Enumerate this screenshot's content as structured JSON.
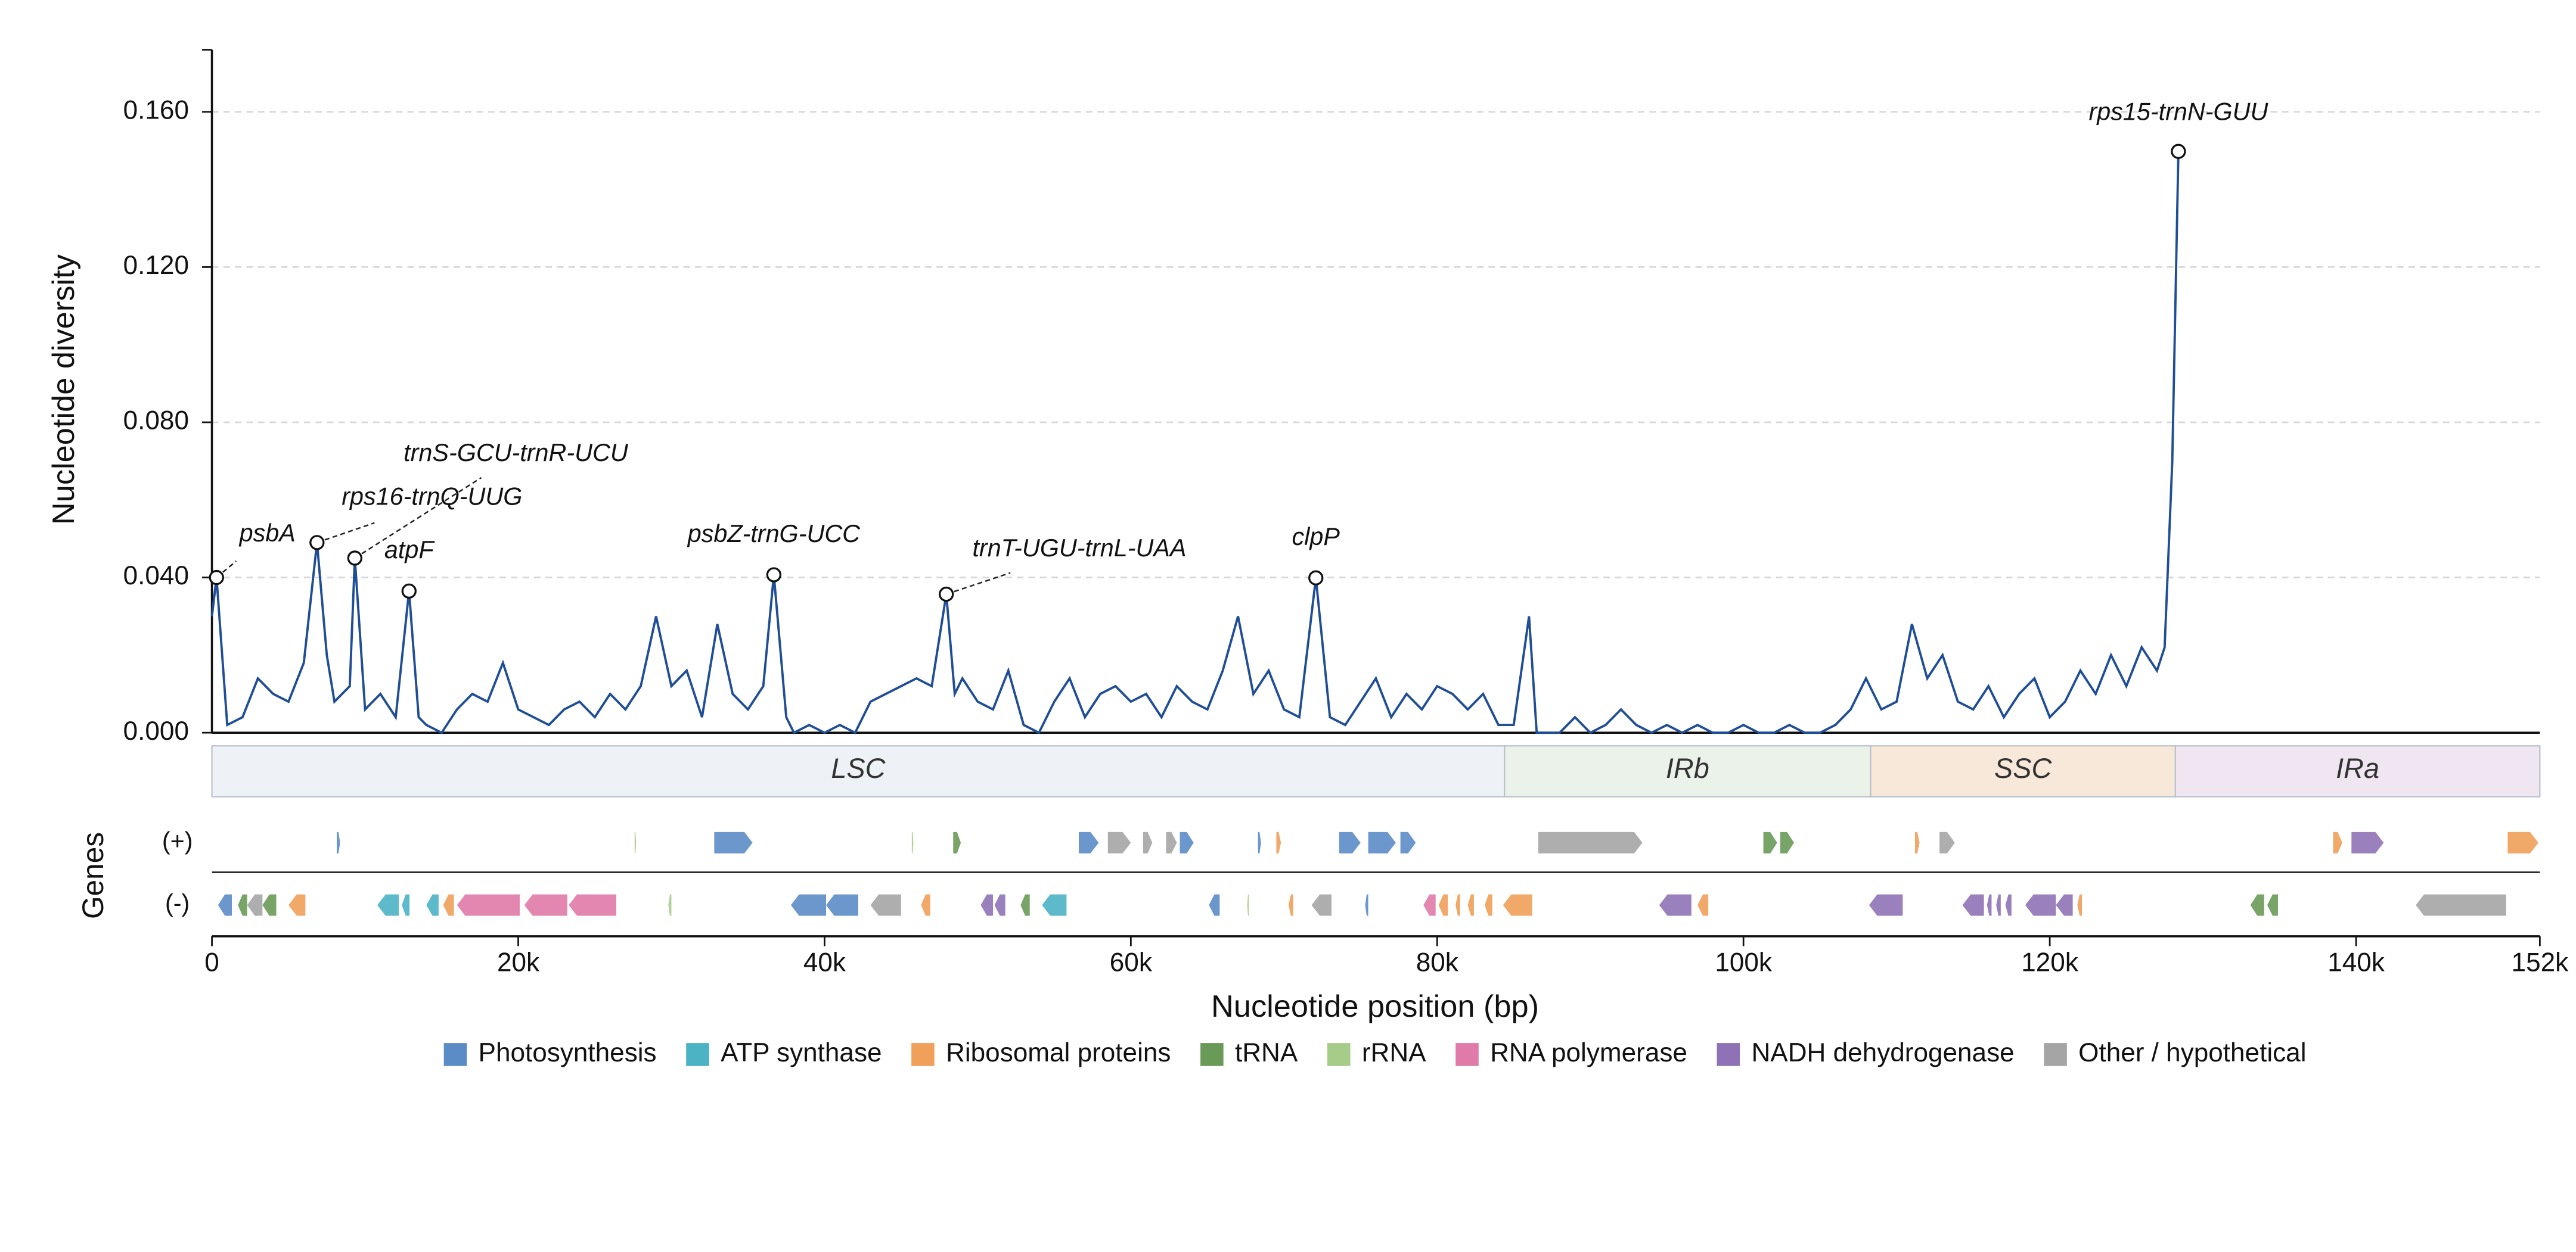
{
  "chart_data": {
    "type": "line",
    "ylabel": "Nucleotide diversity",
    "xlabel": "Nucleotide position (bp)",
    "track_title": "Genes",
    "xlim": [
      0,
      152000
    ],
    "ylim": [
      0,
      0.176
    ],
    "yticks": [
      {
        "value": 0,
        "label": "0.000"
      },
      {
        "value": 0.04,
        "label": "0.040"
      },
      {
        "value": 0.08,
        "label": "0.080"
      },
      {
        "value": 0.12,
        "label": "0.120"
      },
      {
        "value": 0.16,
        "label": "0.160"
      }
    ],
    "xticks": [
      {
        "value": 0,
        "label": "0"
      },
      {
        "value": 20000,
        "label": "20k"
      },
      {
        "value": 40000,
        "label": "40k"
      },
      {
        "value": 60000,
        "label": "60k"
      },
      {
        "value": 80000,
        "label": "80k"
      },
      {
        "value": 100000,
        "label": "100k"
      },
      {
        "value": 120000,
        "label": "120k"
      },
      {
        "value": 140000,
        "label": "140k"
      },
      {
        "value": 152000,
        "label": "152k"
      }
    ],
    "grid": true,
    "series": [
      {
        "color": "#1f4e96",
        "x": [
          0,
          300,
          1000,
          2000,
          3000,
          4000,
          5000,
          6000,
          6860,
          7500,
          8000,
          9000,
          9330,
          10000,
          11000,
          12000,
          12870,
          13500,
          14000,
          15000,
          16000,
          17000,
          18000,
          19000,
          20000,
          21000,
          22000,
          23000,
          24000,
          25000,
          26000,
          27000,
          28000,
          29000,
          30000,
          31000,
          32000,
          33000,
          34000,
          35000,
          36000,
          36690,
          37500,
          38000,
          39000,
          40000,
          41000,
          42000,
          43000,
          44000,
          45000,
          46000,
          47000,
          47950,
          48500,
          49000,
          50000,
          51000,
          52000,
          53000,
          54000,
          55000,
          56000,
          57000,
          58000,
          59000,
          60000,
          61000,
          62000,
          63000,
          64000,
          65000,
          66000,
          67000,
          68000,
          69000,
          70000,
          71000,
          72080,
          73000,
          74000,
          75000,
          76000,
          77000,
          78000,
          79000,
          80000,
          81000,
          82000,
          83000,
          84000,
          85000,
          86000,
          86500,
          87000,
          88000,
          89000,
          90000,
          91000,
          92000,
          93000,
          94000,
          95000,
          96000,
          97000,
          98000,
          99000,
          100000,
          101000,
          102000,
          103000,
          104000,
          105000,
          106000,
          107000,
          108000,
          109000,
          110000,
          111000,
          112000,
          113000,
          114000,
          115000,
          116000,
          117000,
          118000,
          119000,
          120000,
          121000,
          122000,
          123000,
          124000,
          125000,
          126000,
          127000,
          127500,
          128000,
          128400
        ],
        "values": [
          0.03,
          0.04,
          0.002,
          0.004,
          0.014,
          0.01,
          0.008,
          0.018,
          0.049,
          0.02,
          0.008,
          0.012,
          0.045,
          0.006,
          0.01,
          0.004,
          0.0365,
          0.004,
          0.002,
          0,
          0.006,
          0.01,
          0.008,
          0.018,
          0.006,
          0.004,
          0.002,
          0.006,
          0.008,
          0.004,
          0.01,
          0.006,
          0.012,
          0.03,
          0.012,
          0.016,
          0.004,
          0.028,
          0.01,
          0.006,
          0.012,
          0.0407,
          0.004,
          0,
          0.002,
          0,
          0.002,
          0,
          0.008,
          0.01,
          0.012,
          0.014,
          0.012,
          0.0357,
          0.01,
          0.014,
          0.008,
          0.006,
          0.016,
          0.002,
          0,
          0.008,
          0.014,
          0.004,
          0.01,
          0.012,
          0.008,
          0.01,
          0.004,
          0.012,
          0.008,
          0.006,
          0.016,
          0.03,
          0.01,
          0.016,
          0.006,
          0.004,
          0.0399,
          0.004,
          0.002,
          0.008,
          0.014,
          0.004,
          0.01,
          0.006,
          0.012,
          0.01,
          0.006,
          0.01,
          0.002,
          0.002,
          0.03,
          0,
          0,
          0,
          0.004,
          0,
          0.002,
          0.006,
          0.002,
          0,
          0.002,
          0,
          0.002,
          0,
          0,
          0.002,
          0,
          0,
          0.002,
          0,
          0,
          0.002,
          0.006,
          0.014,
          0.006,
          0.008,
          0.028,
          0.014,
          0.02,
          0.008,
          0.006,
          0.012,
          0.004,
          0.01,
          0.014,
          0.004,
          0.008,
          0.016,
          0.01,
          0.02,
          0.012,
          0.022,
          0.016,
          0.022,
          0.07,
          0.1498
        ]
      }
    ],
    "annotations": [
      {
        "text": "psbA",
        "x": 300,
        "y": 0.04
      },
      {
        "text": "rps16-trnQ-UUG",
        "x": 6860,
        "y": 0.049
      },
      {
        "text": "trnS-GCU-trnR-UCU",
        "x": 9330,
        "y": 0.045
      },
      {
        "text": "atpF",
        "x": 12870,
        "y": 0.0365
      },
      {
        "text": "psbZ-trnG-UCC",
        "x": 36690,
        "y": 0.0407
      },
      {
        "text": "trnT-UGU-trnL-UAA",
        "x": 47950,
        "y": 0.0357
      },
      {
        "text": "clpP",
        "x": 72080,
        "y": 0.0399
      },
      {
        "text": "rps15-trnN-GUU",
        "x": 128400,
        "y": 0.1498
      }
    ],
    "regions": [
      {
        "name": "LSC",
        "start": 0,
        "end": 84400,
        "color": "#eef2f6"
      },
      {
        "name": "IRb",
        "start": 84400,
        "end": 108300,
        "color": "#ebf2ea"
      },
      {
        "name": "SSC",
        "start": 108300,
        "end": 128200,
        "color": "#f8e8da"
      },
      {
        "name": "IRa",
        "start": 128200,
        "end": 152000,
        "color": "#f0e6f1"
      }
    ],
    "strands": [
      "(+)",
      "(-)"
    ],
    "gene_groups": [
      {
        "name": "Photosynthesis",
        "color": "#5b8cc6",
        "plus": [
          [
            8150,
            8370
          ],
          [
            32800,
            35300
          ],
          [
            56600,
            57900
          ],
          [
            63200,
            64100
          ],
          [
            68300,
            68500
          ],
          [
            73600,
            75000
          ],
          [
            75500,
            77300
          ],
          [
            77600,
            78600
          ]
        ],
        "minus": [
          [
            400,
            1300
          ],
          [
            37800,
            40100
          ],
          [
            40100,
            42200
          ],
          [
            65100,
            65800
          ],
          [
            75300,
            75500
          ]
        ]
      },
      {
        "name": "ATP synthase",
        "color": "#4bb3c4",
        "plus": [],
        "minus": [
          [
            10800,
            12200
          ],
          [
            12400,
            12900
          ],
          [
            14000,
            14800
          ],
          [
            54200,
            55800
          ]
        ]
      },
      {
        "name": "Ribosomal proteins",
        "color": "#f0a05a",
        "plus": [
          [
            69500,
            69800
          ],
          [
            111200,
            111500
          ],
          [
            138500,
            139100
          ],
          [
            149900,
            151900
          ]
        ],
        "minus": [
          [
            5000,
            6100
          ],
          [
            15100,
            15800
          ],
          [
            46300,
            46900
          ],
          [
            70300,
            70600
          ],
          [
            80100,
            80700
          ],
          [
            81200,
            81500
          ],
          [
            82000,
            82400
          ],
          [
            83100,
            83600
          ],
          [
            84300,
            86200
          ],
          [
            97000,
            97700
          ],
          [
            121800,
            122100
          ]
        ]
      },
      {
        "name": "tRNA",
        "color": "#6a9a58",
        "plus": [
          [
            48400,
            48900
          ],
          [
            101300,
            102200
          ],
          [
            102400,
            103300
          ]
        ],
        "minus": [
          [
            1700,
            2300
          ],
          [
            3300,
            4200
          ],
          [
            52800,
            53400
          ],
          [
            133100,
            134000
          ],
          [
            134200,
            134900
          ]
        ]
      },
      {
        "name": "rRNA",
        "color": "#a6cc8a",
        "plus": [
          [
            27600,
            27700
          ],
          [
            45700,
            45800
          ]
        ],
        "minus": [
          [
            29800,
            30000
          ],
          [
            67600,
            67700
          ]
        ]
      },
      {
        "name": "RNA polymerase",
        "color": "#e07aa8",
        "plus": [],
        "minus": [
          [
            16000,
            20100
          ],
          [
            20400,
            23200
          ],
          [
            23300,
            26400
          ],
          [
            79100,
            79900
          ]
        ]
      },
      {
        "name": "NADH dehydrogenase",
        "color": "#8f72b5",
        "plus": [
          [
            139700,
            141800
          ]
        ],
        "minus": [
          [
            50200,
            51000
          ],
          [
            51100,
            51800
          ],
          [
            94500,
            96600
          ],
          [
            108200,
            110400
          ],
          [
            114300,
            115700
          ],
          [
            115900,
            116200
          ],
          [
            116500,
            116800
          ],
          [
            117100,
            117500
          ],
          [
            118400,
            120400
          ],
          [
            120400,
            121500
          ]
        ]
      },
      {
        "name": "Other / hypothetical",
        "color": "#a5a5a5",
        "plus": [
          [
            58500,
            60000
          ],
          [
            60800,
            61400
          ],
          [
            62300,
            63000
          ],
          [
            86600,
            93400
          ],
          [
            112800,
            113800
          ]
        ],
        "minus": [
          [
            2300,
            3300
          ],
          [
            43000,
            45000
          ],
          [
            71800,
            73100
          ],
          [
            143900,
            149800
          ]
        ]
      }
    ]
  }
}
